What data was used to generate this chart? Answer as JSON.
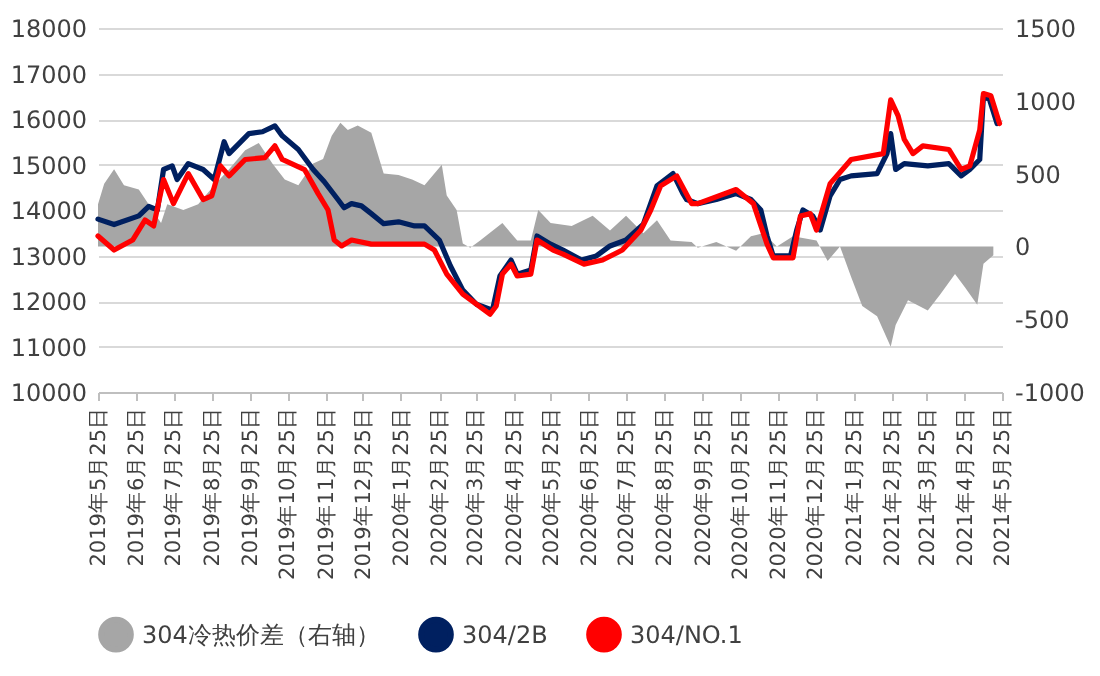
{
  "chart_data": {
    "type": "line",
    "xlim": [
      "2019-05-25",
      "2021-05-25"
    ],
    "xticks": [
      {
        "value": "2019-05-25",
        "label": "2019年5月25日"
      },
      {
        "value": "2019-06-25",
        "label": "2019年6月25日"
      },
      {
        "value": "2019-07-25",
        "label": "2019年7月25日"
      },
      {
        "value": "2019-08-25",
        "label": "2019年8月25日"
      },
      {
        "value": "2019-09-25",
        "label": "2019年9月25日"
      },
      {
        "value": "2019-10-25",
        "label": "2019年10月25日"
      },
      {
        "value": "2019-11-25",
        "label": "2019年11月25日"
      },
      {
        "value": "2019-12-25",
        "label": "2019年12月25日"
      },
      {
        "value": "2020-01-25",
        "label": "2020年1月25日"
      },
      {
        "value": "2020-02-25",
        "label": "2020年2月25日"
      },
      {
        "value": "2020-03-25",
        "label": "2020年3月25日"
      },
      {
        "value": "2020-04-25",
        "label": "2020年4月25日"
      },
      {
        "value": "2020-05-25",
        "label": "2020年5月25日"
      },
      {
        "value": "2020-06-25",
        "label": "2020年6月25日"
      },
      {
        "value": "2020-07-25",
        "label": "2020年7月25日"
      },
      {
        "value": "2020-08-25",
        "label": "2020年8月25日"
      },
      {
        "value": "2020-09-25",
        "label": "2020年9月25日"
      },
      {
        "value": "2020-10-25",
        "label": "2020年10月25日"
      },
      {
        "value": "2020-11-25",
        "label": "2020年11月25日"
      },
      {
        "value": "2020-12-25",
        "label": "2020年12月25日"
      },
      {
        "value": "2021-01-25",
        "label": "2021年1月25日"
      },
      {
        "value": "2021-02-25",
        "label": "2021年2月25日"
      },
      {
        "value": "2021-03-25",
        "label": "2021年3月25日"
      },
      {
        "value": "2021-04-25",
        "label": "2021年4月25日"
      },
      {
        "value": "2021-05-25",
        "label": "2021年5月25日"
      }
    ],
    "ylim": [
      10000,
      18000
    ],
    "yticks": [
      10000,
      11000,
      12000,
      13000,
      14000,
      15000,
      16000,
      17000,
      18000
    ],
    "y2lim": [
      -1000,
      1500
    ],
    "y2ticks": [
      -1000,
      -500,
      0,
      500,
      1000,
      1500
    ],
    "grid": "y",
    "legend": "bottom",
    "series": [
      {
        "name": "304冷热价差（右轴）",
        "type": "area",
        "axis": "y2",
        "color": "#a6a6a6",
        "x": [
          "2019-05-25",
          "2019-05-30",
          "2019-06-07",
          "2019-06-15",
          "2019-06-27",
          "2019-07-08",
          "2019-07-15",
          "2019-07-20",
          "2019-08-02",
          "2019-08-14",
          "2019-08-27",
          "2019-09-08",
          "2019-09-21",
          "2019-10-02",
          "2019-10-13",
          "2019-10-23",
          "2019-11-03",
          "2019-11-15",
          "2019-11-23",
          "2019-11-30",
          "2019-12-07",
          "2019-12-13",
          "2019-12-21",
          "2020-01-01",
          "2020-01-11",
          "2020-01-23",
          "2020-02-03",
          "2020-02-13",
          "2020-02-27",
          "2020-03-02",
          "2020-03-10",
          "2020-03-15",
          "2020-03-21",
          "2020-03-29",
          "2020-04-16",
          "2020-04-28",
          "2020-05-09",
          "2020-05-15",
          "2020-05-25",
          "2020-06-11",
          "2020-06-28",
          "2020-07-12",
          "2020-07-25",
          "2020-08-08",
          "2020-08-19",
          "2020-08-30",
          "2020-09-16",
          "2020-09-21",
          "2020-10-06",
          "2020-10-22",
          "2020-11-03",
          "2020-11-13",
          "2020-11-24",
          "2020-12-07",
          "2020-12-26",
          "2021-01-04",
          "2021-01-14",
          "2021-01-23",
          "2021-02-01",
          "2021-02-13",
          "2021-02-24",
          "2021-02-28",
          "2021-03-10",
          "2021-03-26",
          "2021-04-05",
          "2021-04-17",
          "2021-04-25",
          "2021-05-05",
          "2021-05-10",
          "2021-05-18"
        ],
        "values": [
          290,
          430,
          530,
          420,
          390,
          250,
          160,
          290,
          250,
          290,
          420,
          530,
          660,
          710,
          570,
          460,
          420,
          570,
          600,
          760,
          850,
          800,
          830,
          780,
          500,
          490,
          460,
          420,
          560,
          350,
          250,
          20,
          -10,
          40,
          160,
          40,
          40,
          250,
          160,
          140,
          210,
          110,
          210,
          90,
          180,
          40,
          30,
          -10,
          30,
          -30,
          70,
          90,
          0,
          70,
          40,
          -100,
          0,
          -210,
          -410,
          -480,
          -690,
          -540,
          -370,
          -440,
          -330,
          -190,
          -280,
          -400,
          -120,
          -60
        ]
      },
      {
        "name": "304/2B",
        "color": "#002060",
        "x": [
          "2019-05-25",
          "2019-06-07",
          "2019-06-27",
          "2019-07-05",
          "2019-07-12",
          "2019-07-17",
          "2019-07-24",
          "2019-07-28",
          "2019-08-06",
          "2019-08-18",
          "2019-08-27",
          "2019-09-04",
          "2019-09-08",
          "2019-09-24",
          "2019-10-05",
          "2019-10-15",
          "2019-10-21",
          "2019-11-03",
          "2019-11-15",
          "2019-11-24",
          "2019-12-05",
          "2019-12-10",
          "2019-12-16",
          "2019-12-24",
          "2020-01-01",
          "2020-01-11",
          "2020-01-23",
          "2020-02-05",
          "2020-02-13",
          "2020-02-25",
          "2020-03-05",
          "2020-03-15",
          "2020-03-26",
          "2020-04-08",
          "2020-04-14",
          "2020-04-23",
          "2020-04-28",
          "2020-05-09",
          "2020-05-14",
          "2020-05-25",
          "2020-06-04",
          "2020-06-19",
          "2020-07-01",
          "2020-07-12",
          "2020-07-25",
          "2020-08-08",
          "2020-08-19",
          "2020-09-01",
          "2020-09-09",
          "2020-09-12",
          "2020-09-21",
          "2020-10-06",
          "2020-10-22",
          "2020-11-03",
          "2020-11-11",
          "2020-11-16",
          "2020-11-21",
          "2020-12-05",
          "2020-12-10",
          "2020-12-15",
          "2020-12-23",
          "2020-12-29",
          "2021-01-06",
          "2021-01-14",
          "2021-01-23",
          "2021-02-13",
          "2021-02-21",
          "2021-02-24",
          "2021-02-28",
          "2021-03-07",
          "2021-03-26",
          "2021-04-12",
          "2021-04-22",
          "2021-04-29",
          "2021-05-07",
          "2021-05-10",
          "2021-05-15",
          "2021-05-21"
        ],
        "values": [
          13800,
          13680,
          13870,
          14080,
          14000,
          14890,
          14970,
          14670,
          15020,
          14890,
          14670,
          15500,
          15240,
          15680,
          15720,
          15850,
          15630,
          15330,
          14890,
          14620,
          14230,
          14050,
          14140,
          14090,
          13920,
          13700,
          13740,
          13650,
          13650,
          13340,
          12770,
          12240,
          11930,
          11800,
          12550,
          12900,
          12590,
          12680,
          13430,
          13250,
          13120,
          12900,
          12990,
          13210,
          13340,
          13690,
          14530,
          14800,
          14360,
          14230,
          14140,
          14230,
          14360,
          14230,
          14000,
          13430,
          12990,
          12990,
          13560,
          14000,
          13870,
          13560,
          14310,
          14670,
          14750,
          14800,
          15240,
          15680,
          14890,
          15020,
          14970,
          15020,
          14750,
          14890,
          15110,
          16510,
          16420,
          15900
        ]
      },
      {
        "name": "304/NO.1",
        "color": "#ff0000",
        "x": [
          "2019-05-25",
          "2019-06-07",
          "2019-06-22",
          "2019-07-02",
          "2019-07-09",
          "2019-07-17",
          "2019-07-25",
          "2019-08-06",
          "2019-08-18",
          "2019-08-25",
          "2019-09-01",
          "2019-09-08",
          "2019-09-21",
          "2019-10-07",
          "2019-10-15",
          "2019-10-21",
          "2019-11-08",
          "2019-11-19",
          "2019-11-27",
          "2019-12-02",
          "2019-12-08",
          "2019-12-16",
          "2020-01-01",
          "2020-02-05",
          "2020-02-13",
          "2020-02-21",
          "2020-03-02",
          "2020-03-15",
          "2020-04-06",
          "2020-04-11",
          "2020-04-16",
          "2020-04-23",
          "2020-04-28",
          "2020-05-09",
          "2020-05-14",
          "2020-05-27",
          "2020-06-04",
          "2020-06-21",
          "2020-07-06",
          "2020-07-22",
          "2020-08-06",
          "2020-08-14",
          "2020-08-22",
          "2020-09-04",
          "2020-09-16",
          "2020-09-21",
          "2020-10-22",
          "2020-11-05",
          "2020-11-16",
          "2020-11-21",
          "2020-12-07",
          "2020-12-13",
          "2020-12-21",
          "2020-12-26",
          "2021-01-06",
          "2021-01-16",
          "2021-01-23",
          "2021-02-18",
          "2021-02-24",
          "2021-03-02",
          "2021-03-07",
          "2021-03-14",
          "2021-03-22",
          "2021-04-12",
          "2021-04-22",
          "2021-04-29",
          "2021-05-07",
          "2021-05-10",
          "2021-05-16",
          "2021-05-23"
        ],
        "values": [
          13430,
          13120,
          13340,
          13780,
          13650,
          14670,
          14140,
          14800,
          14230,
          14310,
          14970,
          14750,
          15110,
          15150,
          15410,
          15110,
          14890,
          14360,
          14000,
          13340,
          13210,
          13340,
          13250,
          13250,
          13250,
          13120,
          12590,
          12150,
          11710,
          11890,
          12590,
          12810,
          12550,
          12590,
          13340,
          13120,
          13030,
          12810,
          12900,
          13120,
          13560,
          14000,
          14530,
          14750,
          14140,
          14140,
          14450,
          14140,
          13250,
          12950,
          12950,
          13870,
          13920,
          13560,
          14580,
          14890,
          15110,
          15240,
          16420,
          16070,
          15550,
          15240,
          15410,
          15330,
          14890,
          14970,
          15760,
          16560,
          16510,
          15900
        ]
      }
    ]
  }
}
